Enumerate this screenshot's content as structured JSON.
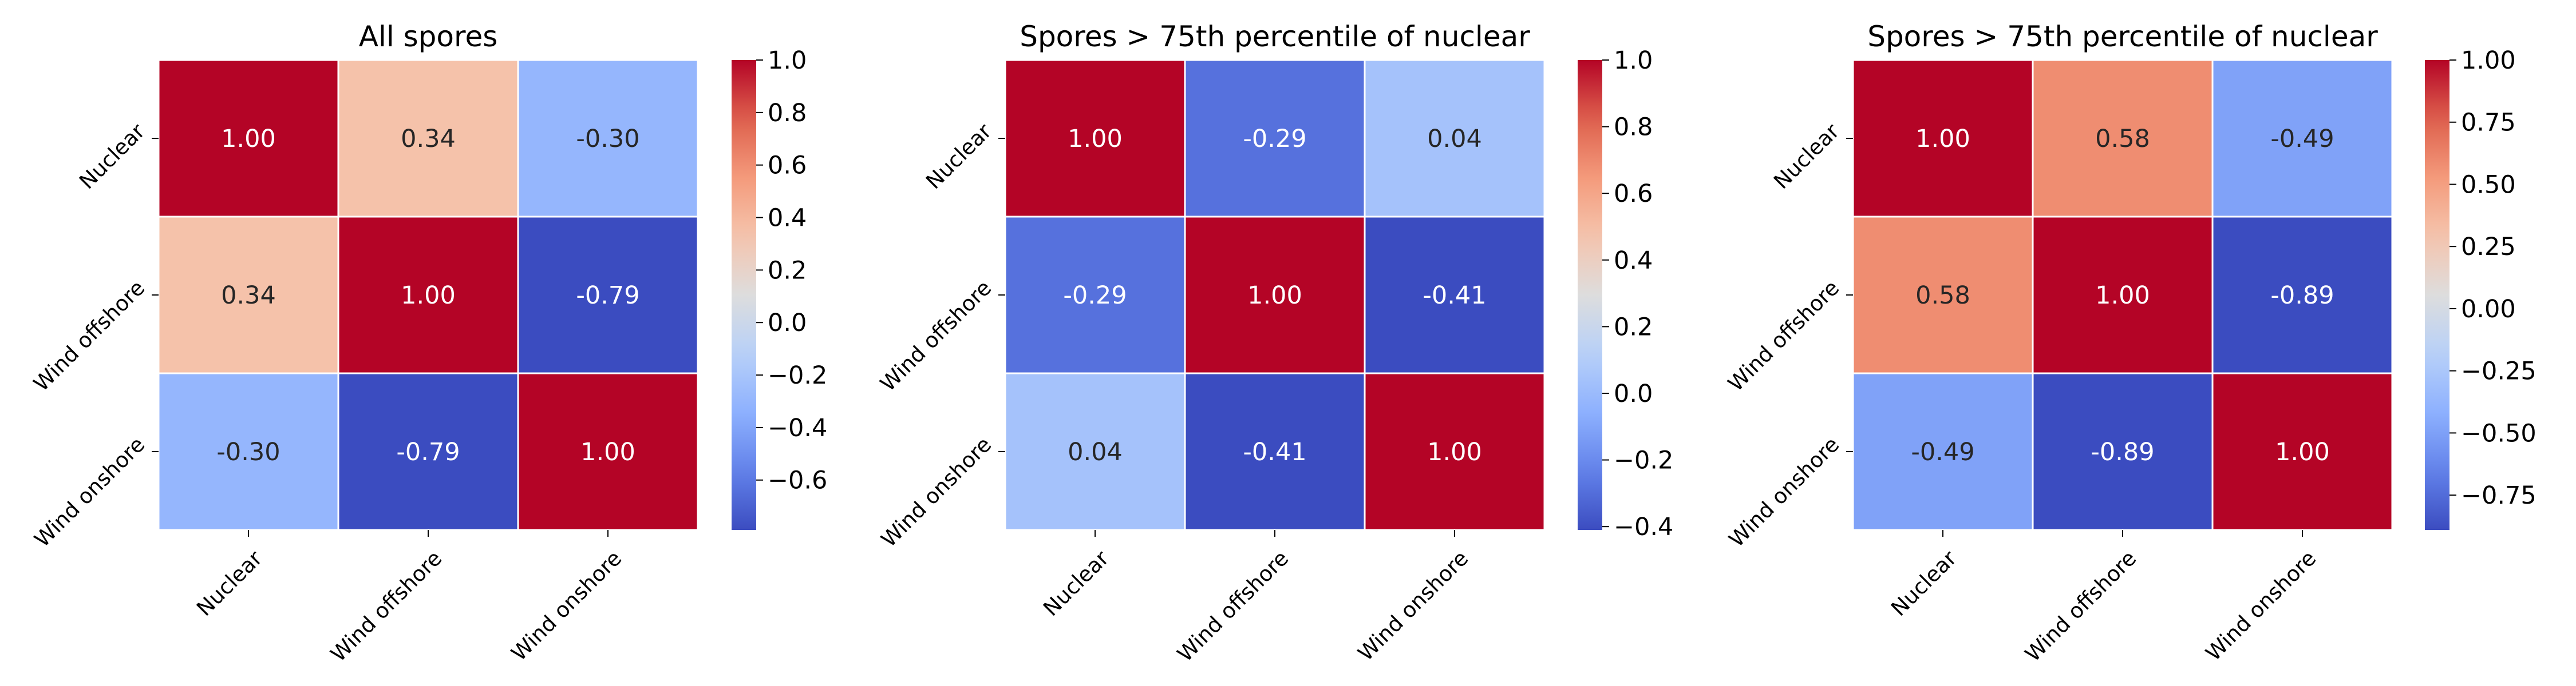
{
  "chart_data": [
    {
      "type": "heatmap",
      "title": "All spores",
      "x_labels": [
        "Nuclear",
        "Wind offshore",
        "Wind onshore"
      ],
      "y_labels": [
        "Nuclear",
        "Wind offshore",
        "Wind onshore"
      ],
      "values": [
        [
          1.0,
          0.34,
          -0.3
        ],
        [
          0.34,
          1.0,
          -0.79
        ],
        [
          -0.3,
          -0.79,
          1.0
        ]
      ],
      "value_format": "0.00",
      "colormap": "coolwarm",
      "color_range": [
        -0.79,
        1.0
      ],
      "colorbar_ticks": [
        -0.6,
        -0.4,
        -0.2,
        0.0,
        0.2,
        0.4,
        0.6,
        0.8,
        1.0
      ],
      "colorbar_tick_labels": [
        "−0.6",
        "−0.4",
        "−0.2",
        "0.0",
        "0.2",
        "0.4",
        "0.6",
        "0.8",
        "1.0"
      ]
    },
    {
      "type": "heatmap",
      "title": "Spores > 75th percentile of nuclear",
      "x_labels": [
        "Nuclear",
        "Wind offshore",
        "Wind onshore"
      ],
      "y_labels": [
        "Nuclear",
        "Wind offshore",
        "Wind onshore"
      ],
      "values": [
        [
          1.0,
          -0.29,
          0.04
        ],
        [
          -0.29,
          1.0,
          -0.41
        ],
        [
          0.04,
          -0.41,
          1.0
        ]
      ],
      "value_format": "0.00",
      "colormap": "coolwarm",
      "color_range": [
        -0.41,
        1.0
      ],
      "colorbar_ticks": [
        -0.4,
        -0.2,
        0.0,
        0.2,
        0.4,
        0.6,
        0.8,
        1.0
      ],
      "colorbar_tick_labels": [
        "−0.4",
        "−0.2",
        "0.0",
        "0.2",
        "0.4",
        "0.6",
        "0.8",
        "1.0"
      ]
    },
    {
      "type": "heatmap",
      "title": "Spores > 75th percentile of nuclear",
      "x_labels": [
        "Nuclear",
        "Wind offshore",
        "Wind onshore"
      ],
      "y_labels": [
        "Nuclear",
        "Wind offshore",
        "Wind onshore"
      ],
      "values": [
        [
          1.0,
          0.58,
          -0.49
        ],
        [
          0.58,
          1.0,
          -0.89
        ],
        [
          -0.49,
          -0.89,
          1.0
        ]
      ],
      "value_format": "0.00",
      "colormap": "coolwarm",
      "color_range": [
        -0.89,
        1.0
      ],
      "colorbar_ticks": [
        -0.75,
        -0.5,
        -0.25,
        0.0,
        0.25,
        0.5,
        0.75,
        1.0
      ],
      "colorbar_tick_labels": [
        "−0.75",
        "−0.50",
        "−0.25",
        "0.00",
        "0.25",
        "0.50",
        "0.75",
        "1.00"
      ]
    }
  ]
}
